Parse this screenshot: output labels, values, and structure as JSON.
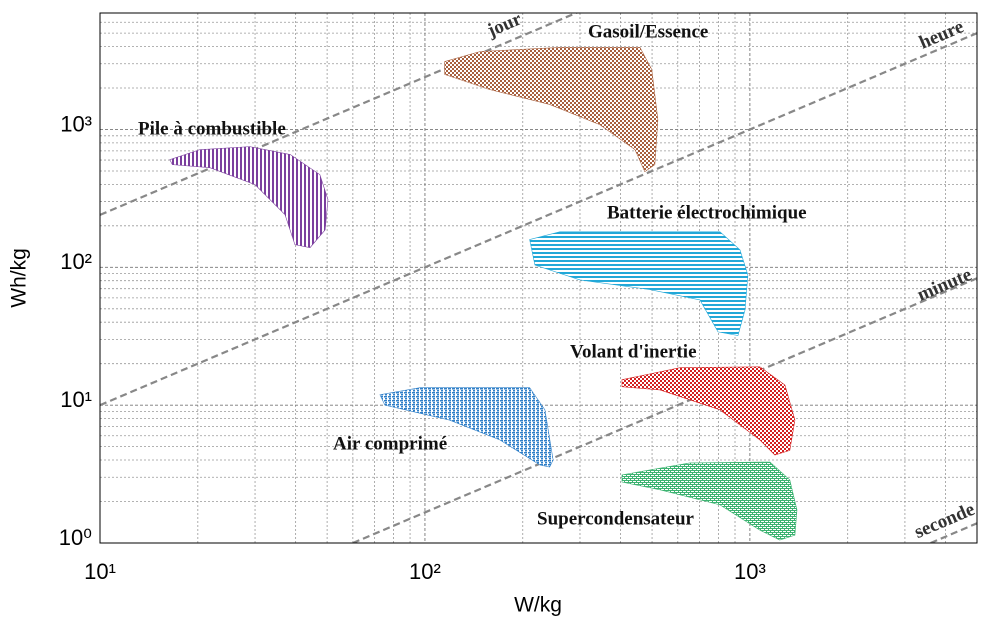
{
  "chart_data": {
    "type": "area",
    "xlabel": "W/kg",
    "ylabel": "Wh/kg",
    "xscale": "log",
    "yscale": "log",
    "xlim": [
      10,
      5000
    ],
    "ylim": [
      1,
      7000
    ],
    "xticks": [
      {
        "value": 10,
        "label": "10¹"
      },
      {
        "value": 100,
        "label": "10²"
      },
      {
        "value": 1000,
        "label": "10³"
      }
    ],
    "yticks": [
      {
        "value": 1,
        "label": "10⁰"
      },
      {
        "value": 10,
        "label": "10¹"
      },
      {
        "value": 100,
        "label": "10²"
      },
      {
        "value": 1000,
        "label": "10³"
      }
    ],
    "xminorticks": [
      20,
      30,
      40,
      50,
      60,
      70,
      80,
      90,
      200,
      300,
      400,
      500,
      600,
      700,
      800,
      900,
      2000,
      3000,
      4000,
      5000
    ],
    "yminorticks": [
      2,
      3,
      4,
      5,
      6,
      7,
      8,
      9,
      20,
      30,
      40,
      50,
      60,
      70,
      80,
      90,
      200,
      300,
      400,
      500,
      600,
      700,
      800,
      900,
      2000,
      3000,
      4000,
      5000,
      6000,
      7000
    ],
    "grid": true,
    "series": [
      {
        "name": "Pile à combustible",
        "color": "#7b3f9e",
        "pattern": "vertical",
        "x": [
          16.4,
          20.3,
          28.9,
          38.5,
          47.5,
          50.3,
          49.3,
          44.3,
          39.8,
          37.1,
          30,
          21.8,
          16.7
        ],
        "y": [
          604,
          714,
          751,
          658,
          470,
          310,
          187,
          139,
          146,
          241,
          398,
          528,
          556
        ]
      },
      {
        "name": "Gasoil/Essence",
        "color": "#a8603e",
        "pattern": "checker",
        "x": [
          115,
          148,
          260,
          459,
          499,
          521,
          510,
          475,
          443,
          345,
          242,
          158,
          115
        ],
        "y": [
          3110,
          3680,
          3940,
          3940,
          2720,
          1180,
          556,
          494,
          714,
          1085,
          1520,
          1950,
          2510
        ]
      },
      {
        "name": "Batterie électrochimique",
        "color": "#22a8d8",
        "pattern": "horizontal",
        "x": [
          210,
          260,
          809,
          932,
          986,
          966,
          919,
          798,
          702,
          492,
          300,
          218
        ],
        "y": [
          159,
          181,
          181,
          134,
          88,
          49,
          32,
          34,
          58,
          69,
          81,
          104
        ]
      },
      {
        "name": "Air comprimé",
        "color": "#2f7fc8",
        "pattern": "dots",
        "x": [
          72.7,
          96.5,
          210,
          234,
          248,
          242,
          226,
          170,
          119,
          75.3
        ],
        "y": [
          11.9,
          13.4,
          13.4,
          9.25,
          4.0,
          3.56,
          3.68,
          5.6,
          7.8,
          10
        ]
      },
      {
        "name": "Volant d'inertie",
        "color": "#d42020",
        "pattern": "checker",
        "x": [
          404,
          609,
          1073,
          1282,
          1376,
          1327,
          1194,
          1073,
          809,
          529,
          404
        ],
        "y": [
          15.3,
          18.7,
          19,
          14,
          7.8,
          4.7,
          4.35,
          5.6,
          9.25,
          12.9,
          13.6
        ]
      },
      {
        "name": "Supercondensateur",
        "color": "#3cb371",
        "pattern": "brick",
        "x": [
          404,
          653,
          1153,
          1327,
          1396,
          1376,
          1236,
          1073,
          809,
          529,
          404
        ],
        "y": [
          3.12,
          3.81,
          3.87,
          2.87,
          1.74,
          1.14,
          1.05,
          1.24,
          1.89,
          2.43,
          2.77
        ]
      }
    ],
    "lines": [
      {
        "name": "jour",
        "color": "#888888",
        "x": [
          10,
          300
        ],
        "y": [
          240,
          7200
        ]
      },
      {
        "name": "heure",
        "color": "#888888",
        "x": [
          10,
          5000
        ],
        "y": [
          10,
          5000
        ]
      },
      {
        "name": "minute",
        "color": "#888888",
        "x": [
          60,
          5000
        ],
        "y": [
          1,
          83.3
        ]
      },
      {
        "name": "seconde",
        "color": "#888888",
        "x": [
          3600,
          5000
        ],
        "y": [
          1,
          1.39
        ]
      }
    ]
  }
}
